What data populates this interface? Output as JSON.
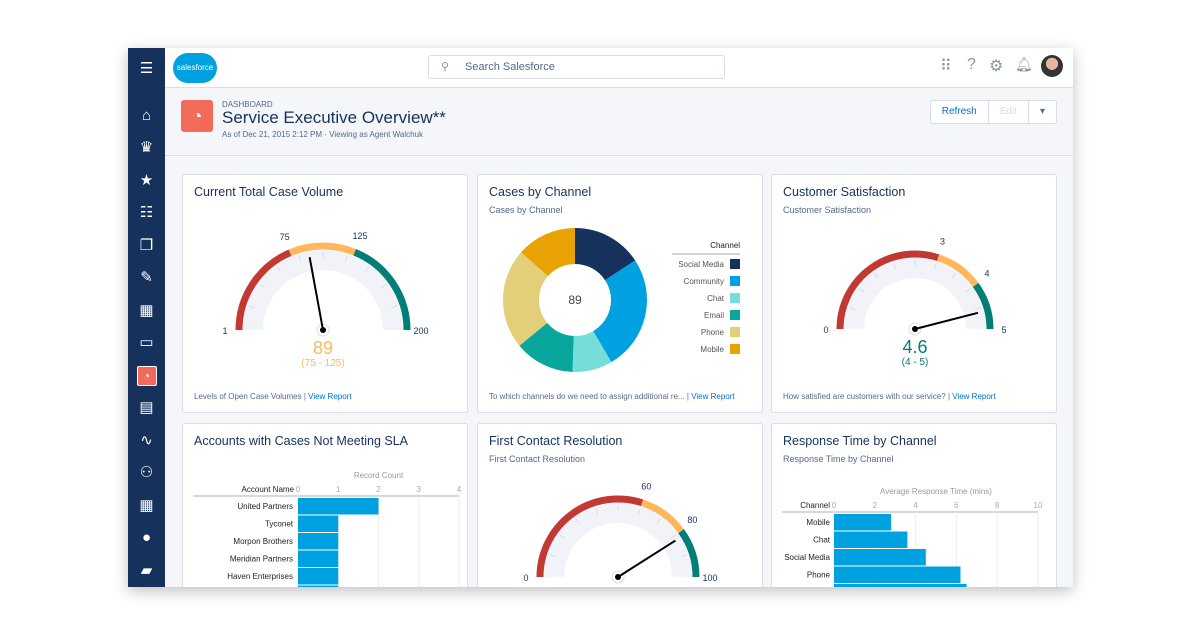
{
  "app": {
    "logo": "salesforce",
    "search_placeholder": "Search Salesforce"
  },
  "sidebar": {
    "items": [
      {
        "icon": "menu-icon",
        "glyph": "☰"
      },
      {
        "icon": "home-icon",
        "glyph": "⌂"
      },
      {
        "icon": "crown-icon",
        "glyph": "♛"
      },
      {
        "icon": "leads-icon",
        "glyph": "★"
      },
      {
        "icon": "tasks-icon",
        "glyph": "☷"
      },
      {
        "icon": "files-icon",
        "glyph": "❐"
      },
      {
        "icon": "notes-icon",
        "glyph": "✎"
      },
      {
        "icon": "accounts-icon",
        "glyph": "▦"
      },
      {
        "icon": "contacts-icon",
        "glyph": "▭"
      },
      {
        "icon": "dashboard-icon",
        "glyph": "◔",
        "active": true
      },
      {
        "icon": "reports-icon",
        "glyph": "▤"
      },
      {
        "icon": "pulse-icon",
        "glyph": "∿"
      },
      {
        "icon": "groups-icon",
        "glyph": "⚇"
      },
      {
        "icon": "calendar-icon",
        "glyph": "▦"
      },
      {
        "icon": "person-icon",
        "glyph": "●"
      },
      {
        "icon": "briefcase-icon",
        "glyph": "▰"
      }
    ]
  },
  "header": {
    "crumb": "DASHBOARD",
    "title": "Service Executive Overview**",
    "subtitle": "As of Dec 21, 2015 2:12 PM · Viewing as Agent Walchuk",
    "refresh": "Refresh",
    "edit": "Edit",
    "menu": "▾"
  },
  "colors": {
    "navy": "#16325c",
    "red": "#c23934",
    "yellow": "#ffb75d",
    "teal": "#04844b",
    "bar": "#00a1e0",
    "brand": "#f26a5a"
  },
  "cards": {
    "volume": {
      "title": "Current Total Case Volume",
      "footer": "Levels of Open Case Volumes | ",
      "link": "View Report"
    },
    "channel": {
      "title": "Cases by Channel",
      "subtitle": "Cases by Channel",
      "footer": "To which channels do we need to assign additional re... | ",
      "link": "View Report"
    },
    "csat": {
      "title": "Customer Satisfaction",
      "subtitle": "Customer Satisfaction",
      "footer": "How satisfied are customers with our service? | ",
      "link": "View Report"
    },
    "sla": {
      "title": "Accounts with Cases Not Meeting SLA"
    },
    "fcr": {
      "title": "First Contact Resolution",
      "subtitle": "First Contact Resolution"
    },
    "resp": {
      "title": "Response Time by Channel",
      "subtitle": "Response Time by Channel"
    }
  },
  "chart_data": [
    {
      "type": "gauge",
      "id": "volume",
      "min": 1,
      "max": 200,
      "value": 89,
      "value_label": "89",
      "range_label": "(75 - 125)",
      "bands": [
        {
          "from": 1,
          "to": 75,
          "color": "#c23934"
        },
        {
          "from": 75,
          "to": 125,
          "color": "#ffb75d"
        },
        {
          "from": 125,
          "to": 200,
          "color": "#027e77"
        }
      ],
      "tick_labels": [
        "1",
        "75",
        "125",
        "200"
      ],
      "value_color": "#ffb75d"
    },
    {
      "type": "pie",
      "id": "channel",
      "donut": true,
      "center_label": "89",
      "legend_title": "Channel",
      "legend_placement": "right",
      "categories": [
        "Social Media",
        "Community",
        "Chat",
        "Email",
        "Phone",
        "Mobile"
      ],
      "values": [
        14,
        23,
        8,
        12,
        20,
        12
      ],
      "colors": [
        "#16325c",
        "#00a1e0",
        "#76ded9",
        "#08a69d",
        "#e3cf7a",
        "#e8a202"
      ]
    },
    {
      "type": "gauge",
      "id": "csat",
      "min": 0,
      "max": 5,
      "value": 4.6,
      "value_label": "4.6",
      "range_label": "(4 - 5)",
      "bands": [
        {
          "from": 0,
          "to": 3,
          "color": "#c23934"
        },
        {
          "from": 3,
          "to": 4,
          "color": "#ffb75d"
        },
        {
          "from": 4,
          "to": 5,
          "color": "#027e77"
        }
      ],
      "tick_labels": [
        "0",
        "3",
        "4",
        "5"
      ],
      "value_color": "#027e77"
    },
    {
      "type": "bar",
      "id": "sla",
      "orientation": "horizontal",
      "xlabel": "Record Count",
      "ylabel": "Account Name",
      "xlim": [
        0,
        4
      ],
      "ticks": [
        "0",
        "1",
        "2",
        "3",
        "4"
      ],
      "categories": [
        "United Partners",
        "Tyconet",
        "Morpon Brothers",
        "Meridian Partners",
        "Haven Enterprises",
        ""
      ],
      "values": [
        2,
        1,
        1,
        1,
        1,
        1
      ]
    },
    {
      "type": "gauge",
      "id": "fcr",
      "min": 0,
      "max": 100,
      "value": 82,
      "bands": [
        {
          "from": 0,
          "to": 60,
          "color": "#c23934"
        },
        {
          "from": 60,
          "to": 80,
          "color": "#ffb75d"
        },
        {
          "from": 80,
          "to": 100,
          "color": "#027e77"
        }
      ],
      "tick_labels": [
        "0",
        "60",
        "80",
        "100"
      ]
    },
    {
      "type": "bar",
      "id": "resp",
      "orientation": "horizontal",
      "xlabel": "Average Response Time (mins)",
      "ylabel": "Channel",
      "xlim": [
        0,
        10
      ],
      "ticks": [
        "0",
        "2",
        "4",
        "6",
        "8",
        "10"
      ],
      "categories": [
        "Mobile",
        "Chat",
        "Social Media",
        "Phone",
        ""
      ],
      "values": [
        2.8,
        3.6,
        4.5,
        6.2,
        6.5
      ]
    }
  ]
}
